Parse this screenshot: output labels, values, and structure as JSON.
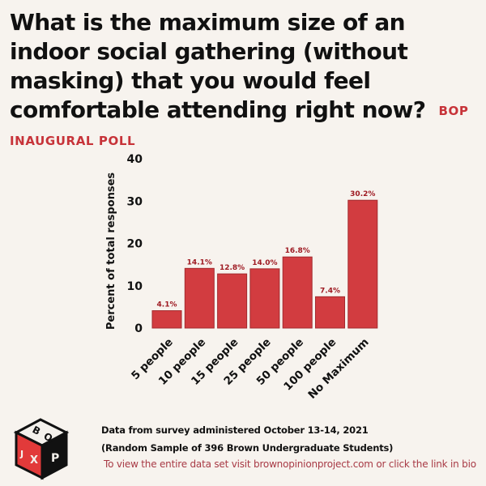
{
  "colors": {
    "bar": "#d23c40",
    "bar_stroke": "#a32a2e",
    "accent": "#c73339",
    "link": "#a83a45",
    "label": "#9e1a22"
  },
  "title": "What is the maximum size of an indoor social gathering (without masking) that you would feel comfortable attending right now?",
  "subtitle": "BOP INAUGURAL POLL",
  "chart_data": {
    "type": "bar",
    "categories": [
      "5 people",
      "10 people",
      "15 people",
      "25 people",
      "50 people",
      "100 people",
      "No Maximum"
    ],
    "values": [
      4.1,
      14.1,
      12.8,
      14.0,
      16.8,
      7.4,
      30.2
    ],
    "data_labels": [
      "4.1%",
      "14.1%",
      "12.8%",
      "14.0%",
      "16.8%",
      "7.4%",
      "30.2%"
    ],
    "ylabel": "Percent of total responses",
    "xlabel": "",
    "ylim": [
      0,
      40
    ],
    "yticks": [
      0,
      10,
      20,
      30,
      40
    ],
    "grid": false,
    "legend": "none"
  },
  "footer": {
    "line1": "Data from survey administered October 13-14, 2021",
    "line2": "(Random Sample of 396 Brown Undergraduate Students)",
    "link_text": "To view the entire data set visit brownopinionproject.com or click the link in bio"
  },
  "logo": {
    "letters": [
      "B",
      "O",
      "P",
      "X",
      "J"
    ]
  }
}
